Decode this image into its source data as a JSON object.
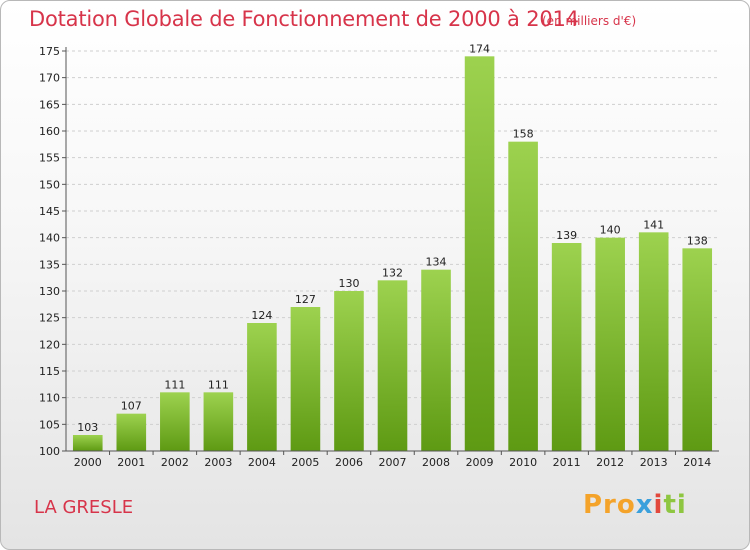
{
  "header": {
    "title": "Dotation Globale de Fonctionnement de 2000 à 2014",
    "subtitle": "(en milliers d'€)"
  },
  "footer": {
    "commune": "LA GRESLE",
    "logo": [
      "Pro",
      "x",
      "i",
      "ti"
    ]
  },
  "colors": {
    "title": "#d7344a",
    "bar_light": "#9dd24f",
    "bar_dark": "#5e9a13",
    "grid": "#cfcfcf"
  },
  "chart_data": {
    "type": "bar",
    "title": "Dotation Globale de Fonctionnement de 2000 à 2014",
    "subtitle": "(en milliers d'€)",
    "categories": [
      "2000",
      "2001",
      "2002",
      "2003",
      "2004",
      "2005",
      "2006",
      "2007",
      "2008",
      "2009",
      "2010",
      "2011",
      "2012",
      "2013",
      "2014"
    ],
    "values": [
      103,
      107,
      111,
      111,
      124,
      127,
      130,
      132,
      134,
      174,
      158,
      139,
      140,
      141,
      138
    ],
    "ylim": [
      100,
      175
    ],
    "yticks": [
      100,
      105,
      110,
      115,
      120,
      125,
      130,
      135,
      140,
      145,
      150,
      155,
      160,
      165,
      170,
      175
    ],
    "grid": true,
    "data_labels": true,
    "legend": "none"
  }
}
